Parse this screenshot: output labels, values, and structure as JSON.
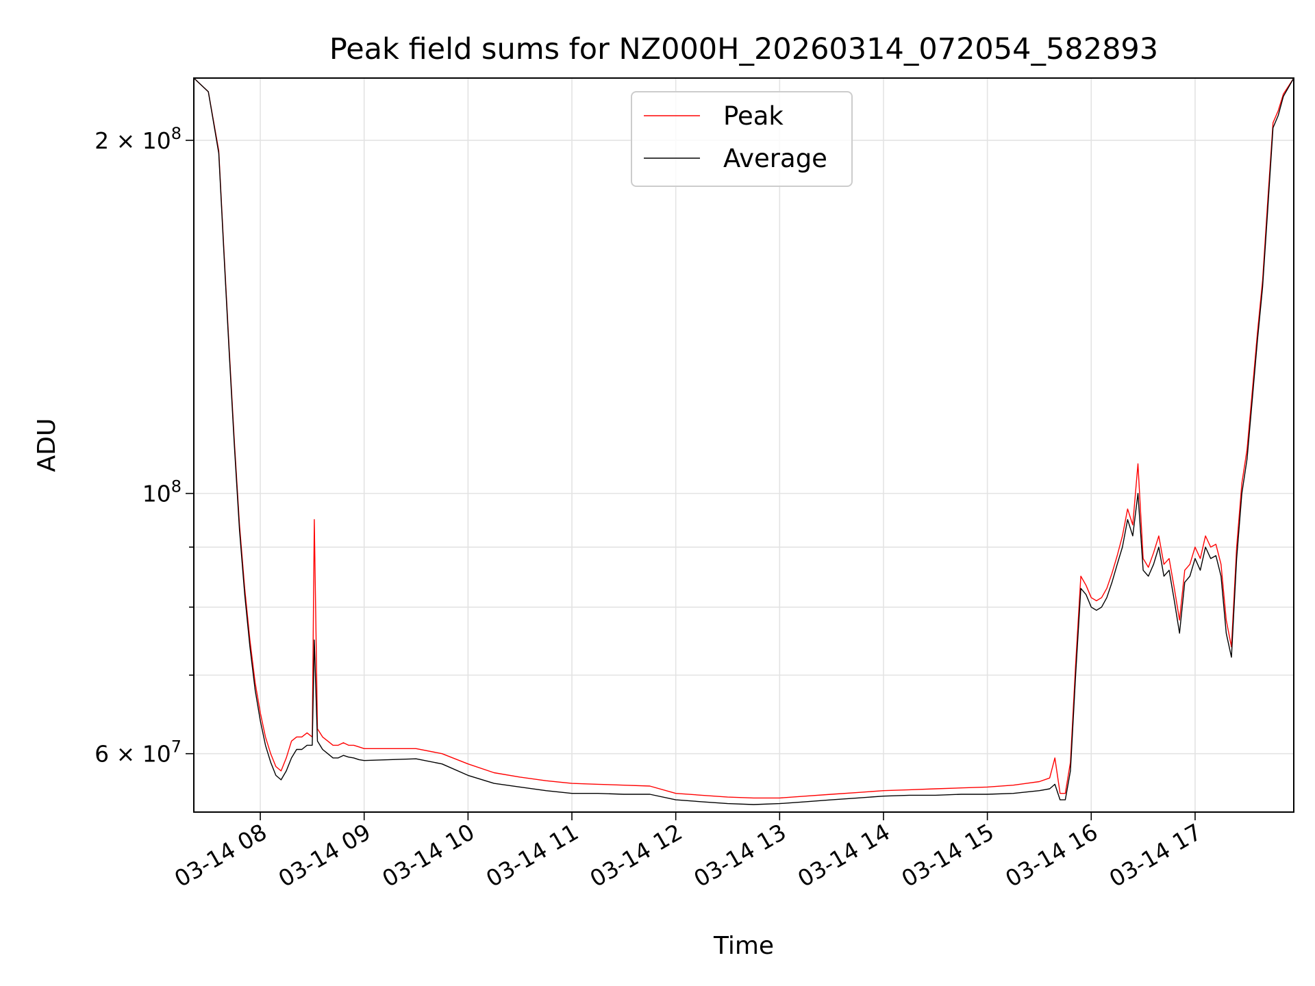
{
  "chart_data": {
    "type": "line",
    "title": "Peak field sums for NZ000H_20260314_072054_582893",
    "xlabel": "Time",
    "ylabel": "ADU",
    "x_unit": "hour of 2026-03-14",
    "y_scale": "log",
    "xlim": [
      7.36,
      17.95
    ],
    "ylim": [
      53500000,
      226000000
    ],
    "grid": true,
    "legend_position": "upper center",
    "x_ticks": [
      {
        "value": 8,
        "label": "03-14 08"
      },
      {
        "value": 9,
        "label": "03-14 09"
      },
      {
        "value": 10,
        "label": "03-14 10"
      },
      {
        "value": 11,
        "label": "03-14 11"
      },
      {
        "value": 12,
        "label": "03-14 12"
      },
      {
        "value": 13,
        "label": "03-14 13"
      },
      {
        "value": 14,
        "label": "03-14 14"
      },
      {
        "value": 15,
        "label": "03-14 15"
      },
      {
        "value": 16,
        "label": "03-14 16"
      },
      {
        "value": 17,
        "label": "03-14 17"
      }
    ],
    "y_major_ticks": [
      {
        "value": 60000000,
        "mantissa": "6",
        "exponent": "7"
      },
      {
        "value": 100000000,
        "mantissa": "",
        "exponent": "8"
      },
      {
        "value": 200000000,
        "mantissa": "2",
        "exponent": "8"
      }
    ],
    "y_minor_ticks": [
      70000000,
      80000000,
      90000000
    ],
    "series": [
      {
        "name": "Average",
        "color": "#000000",
        "x": [
          7.36,
          7.5,
          7.6,
          7.65,
          7.7,
          7.75,
          7.8,
          7.85,
          7.9,
          7.95,
          8.0,
          8.05,
          8.1,
          8.15,
          8.2,
          8.25,
          8.3,
          8.35,
          8.4,
          8.45,
          8.5,
          8.52,
          8.55,
          8.6,
          8.65,
          8.7,
          8.75,
          8.8,
          8.85,
          8.9,
          8.95,
          9.0,
          9.25,
          9.5,
          9.75,
          10.0,
          10.25,
          10.5,
          10.75,
          11.0,
          11.25,
          11.5,
          11.75,
          12.0,
          12.25,
          12.5,
          12.75,
          13.0,
          13.25,
          13.5,
          13.75,
          14.0,
          14.25,
          14.5,
          14.75,
          15.0,
          15.25,
          15.5,
          15.6,
          15.65,
          15.7,
          15.75,
          15.8,
          15.85,
          15.9,
          15.95,
          16.0,
          16.05,
          16.1,
          16.15,
          16.2,
          16.25,
          16.3,
          16.35,
          16.4,
          16.45,
          16.5,
          16.55,
          16.6,
          16.65,
          16.7,
          16.75,
          16.8,
          16.85,
          16.9,
          16.95,
          17.0,
          17.05,
          17.1,
          17.15,
          17.2,
          17.25,
          17.3,
          17.35,
          17.4,
          17.45,
          17.5,
          17.55,
          17.6,
          17.65,
          17.7,
          17.75,
          17.8,
          17.85,
          17.95
        ],
        "values": [
          226000000,
          220000000,
          195000000,
          160000000,
          132000000,
          110000000,
          93000000,
          82000000,
          74000000,
          68000000,
          64000000,
          61000000,
          59000000,
          57500000,
          57000000,
          58000000,
          59500000,
          60500000,
          60500000,
          61000000,
          61000000,
          75000000,
          61500000,
          60500000,
          60000000,
          59500000,
          59500000,
          59800000,
          59600000,
          59500000,
          59300000,
          59200000,
          59300000,
          59400000,
          58800000,
          57500000,
          56600000,
          56200000,
          55800000,
          55500000,
          55500000,
          55400000,
          55400000,
          54800000,
          54600000,
          54400000,
          54300000,
          54400000,
          54600000,
          54800000,
          55000000,
          55200000,
          55300000,
          55300000,
          55400000,
          55400000,
          55500000,
          55800000,
          56000000,
          56500000,
          54800000,
          54800000,
          58000000,
          70000000,
          83000000,
          82000000,
          80000000,
          79500000,
          80000000,
          81500000,
          84000000,
          87000000,
          90000000,
          95000000,
          92000000,
          100000000,
          86000000,
          85000000,
          87000000,
          90000000,
          85000000,
          86000000,
          81000000,
          76000000,
          84000000,
          85000000,
          88000000,
          86000000,
          90000000,
          88000000,
          88500000,
          85000000,
          76000000,
          72500000,
          88000000,
          100000000,
          107000000,
          120000000,
          135000000,
          150000000,
          175000000,
          205000000,
          210000000,
          218000000,
          226000000
        ]
      },
      {
        "name": "Peak",
        "color": "#ff0000",
        "x": [
          7.36,
          7.5,
          7.6,
          7.65,
          7.7,
          7.75,
          7.8,
          7.85,
          7.9,
          7.95,
          8.0,
          8.05,
          8.1,
          8.15,
          8.2,
          8.25,
          8.3,
          8.35,
          8.4,
          8.45,
          8.5,
          8.52,
          8.55,
          8.6,
          8.65,
          8.7,
          8.75,
          8.8,
          8.85,
          8.9,
          8.95,
          9.0,
          9.25,
          9.5,
          9.75,
          10.0,
          10.25,
          10.5,
          10.75,
          11.0,
          11.25,
          11.5,
          11.75,
          12.0,
          12.25,
          12.5,
          12.75,
          13.0,
          13.25,
          13.5,
          13.75,
          14.0,
          14.25,
          14.5,
          14.75,
          15.0,
          15.25,
          15.5,
          15.6,
          15.65,
          15.7,
          15.75,
          15.8,
          15.85,
          15.9,
          15.95,
          16.0,
          16.05,
          16.1,
          16.15,
          16.2,
          16.25,
          16.3,
          16.35,
          16.4,
          16.45,
          16.5,
          16.55,
          16.6,
          16.65,
          16.7,
          16.75,
          16.8,
          16.85,
          16.9,
          16.95,
          17.0,
          17.05,
          17.1,
          17.15,
          17.2,
          17.25,
          17.3,
          17.35,
          17.4,
          17.45,
          17.5,
          17.55,
          17.6,
          17.65,
          17.7,
          17.75,
          17.8,
          17.85,
          17.95
        ],
        "values": [
          226000000,
          220000000,
          196000000,
          161000000,
          133000000,
          111000000,
          94000000,
          83000000,
          75000000,
          69000000,
          65000000,
          62000000,
          60000000,
          58500000,
          58000000,
          59500000,
          61500000,
          62000000,
          62000000,
          62500000,
          62000000,
          95000000,
          63000000,
          62000000,
          61500000,
          61000000,
          61000000,
          61300000,
          61000000,
          61000000,
          60800000,
          60600000,
          60600000,
          60600000,
          60000000,
          58800000,
          57800000,
          57300000,
          56900000,
          56600000,
          56500000,
          56400000,
          56300000,
          55500000,
          55300000,
          55100000,
          55000000,
          55000000,
          55200000,
          55400000,
          55600000,
          55800000,
          55900000,
          56000000,
          56100000,
          56200000,
          56400000,
          56800000,
          57200000,
          59500000,
          55500000,
          55500000,
          59000000,
          71500000,
          85000000,
          83500000,
          81500000,
          81000000,
          81500000,
          83000000,
          85500000,
          88500000,
          92000000,
          97000000,
          94000000,
          106000000,
          88000000,
          86500000,
          89000000,
          92000000,
          87000000,
          88000000,
          83000000,
          78000000,
          86000000,
          87000000,
          90000000,
          88000000,
          92000000,
          90000000,
          90500000,
          87000000,
          78000000,
          74000000,
          90000000,
          102000000,
          109000000,
          122000000,
          137000000,
          152000000,
          178000000,
          207000000,
          212000000,
          219000000,
          226000000
        ]
      }
    ]
  }
}
